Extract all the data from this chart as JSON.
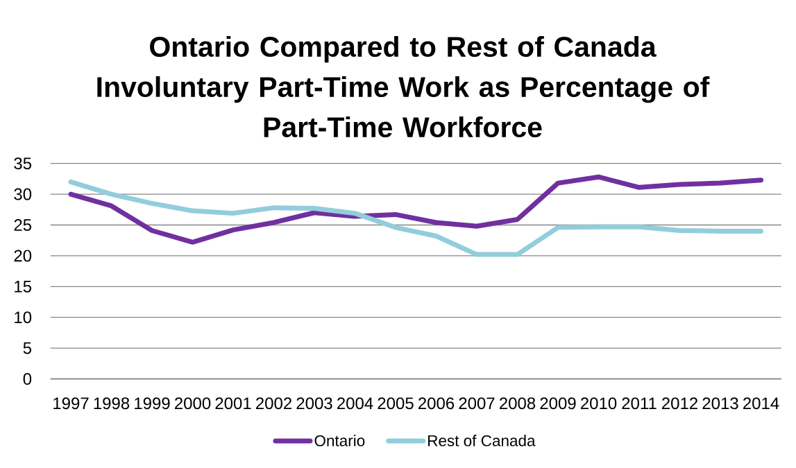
{
  "chart_data": {
    "type": "line",
    "title": "Ontario Compared to Rest of Canada Involuntary Part-Time Work as Percentage of Part-Time Workforce",
    "categories": [
      "1997",
      "1998",
      "1999",
      "2000",
      "2001",
      "2002",
      "2003",
      "2004",
      "2005",
      "2006",
      "2007",
      "2008",
      "2009",
      "2010",
      "2011",
      "2012",
      "2013",
      "2014"
    ],
    "series": [
      {
        "name": "Ontario",
        "color": "#7030a0",
        "values": [
          30.0,
          28.1,
          24.1,
          22.2,
          24.2,
          25.4,
          27.0,
          26.4,
          26.7,
          25.4,
          24.8,
          25.9,
          31.8,
          32.8,
          31.1,
          31.6,
          31.8,
          32.3
        ]
      },
      {
        "name": "Rest of Canada",
        "color": "#92cddc",
        "values": [
          32.0,
          30.0,
          28.5,
          27.3,
          26.9,
          27.8,
          27.7,
          26.9,
          24.6,
          23.2,
          20.2,
          20.2,
          24.6,
          24.7,
          24.7,
          24.1,
          24.0,
          24.0
        ]
      }
    ],
    "ylim": [
      0,
      35
    ],
    "yticks": [
      0,
      5,
      10,
      15,
      20,
      25,
      30,
      35
    ],
    "grid": "y",
    "legend": "bottom",
    "marker": "none",
    "line_style": "solid"
  }
}
